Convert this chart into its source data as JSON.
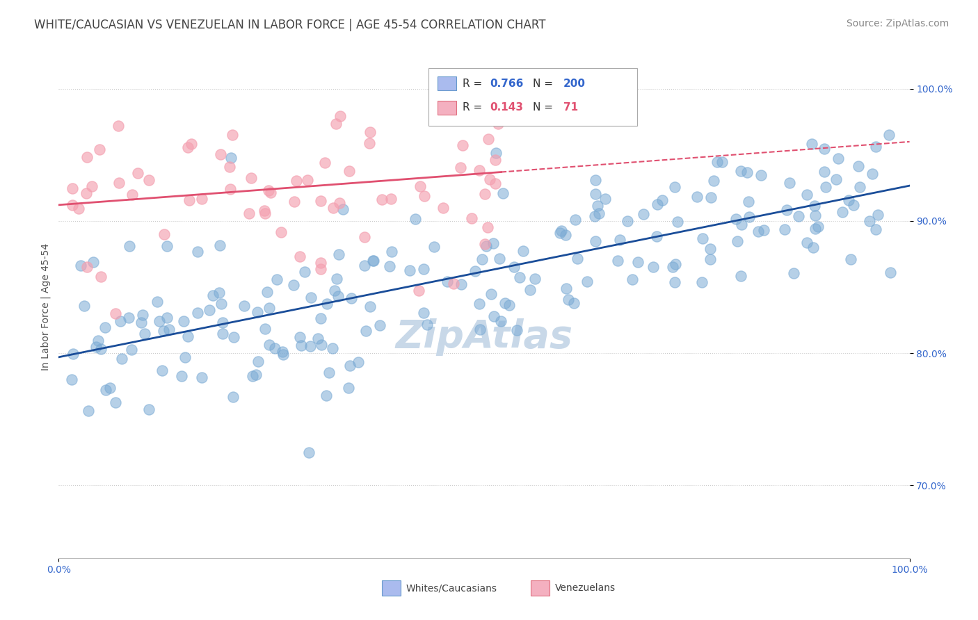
{
  "title": "WHITE/CAUCASIAN VS VENEZUELAN IN LABOR FORCE | AGE 45-54 CORRELATION CHART",
  "source": "Source: ZipAtlas.com",
  "ylabel_label": "In Labor Force | Age 45-54",
  "legend_entries": [
    {
      "label": "Whites/Caucasians",
      "color": "#7aaad4",
      "R": 0.766,
      "N": 200
    },
    {
      "label": "Venezuelans",
      "color": "#f4a0b0",
      "R": 0.143,
      "N": 71
    }
  ],
  "watermark": "ZipAtlas",
  "blue_R": 0.766,
  "blue_N": 200,
  "pink_R": 0.143,
  "pink_N": 71,
  "x_min": 0.0,
  "x_max": 1.0,
  "y_min": 0.645,
  "y_max": 1.025,
  "blue_scatter_color": "#7aaad4",
  "pink_scatter_color": "#f4a0b0",
  "blue_line_color": "#1a4d99",
  "pink_line_color": "#e05070",
  "dashed_line_color": "#e05070",
  "grid_color": "#cccccc",
  "background_color": "#ffffff",
  "title_color": "#444444",
  "title_fontsize": 12,
  "source_fontsize": 10,
  "axis_label_fontsize": 10,
  "tick_fontsize": 10,
  "tick_color": "#3366cc",
  "watermark_color": "#c8d8e8",
  "watermark_fontsize": 40,
  "legend_box_color": "#aabbdd",
  "legend_pink_box_color": "#f4a0b0"
}
